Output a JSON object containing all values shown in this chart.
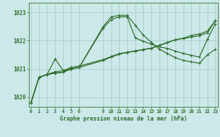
{
  "title": "Graphe pression niveau de la mer (hPa)",
  "bg_color": "#cce8e8",
  "grid_color": "#aad0d0",
  "line_color": "#2d6e2d",
  "ylim": [
    1019.65,
    1023.35
  ],
  "yticks": [
    1020,
    1021,
    1022,
    1023
  ],
  "xticks": [
    0,
    1,
    2,
    3,
    4,
    5,
    6,
    9,
    10,
    11,
    12,
    13,
    14,
    15,
    16,
    17,
    18,
    19,
    20,
    21,
    22,
    23
  ],
  "xlim": [
    -0.3,
    23.3
  ],
  "series": [
    {
      "x": [
        0,
        1,
        2,
        3,
        4,
        5,
        6,
        9,
        10,
        11,
        12,
        13,
        14,
        15,
        16,
        17,
        18,
        19,
        20,
        21,
        22,
        23
      ],
      "y": [
        1019.8,
        1020.7,
        1020.8,
        1021.35,
        1020.95,
        1021.0,
        1021.05,
        1022.5,
        1022.85,
        1022.9,
        1022.9,
        1022.55,
        1022.2,
        1021.95,
        1021.7,
        1021.55,
        1021.4,
        1021.3,
        1021.25,
        1021.2,
        1021.5,
        1021.7
      ]
    },
    {
      "x": [
        0,
        1,
        2,
        3,
        4,
        5,
        6,
        9,
        10,
        11,
        12,
        13,
        14,
        15,
        16,
        17,
        18,
        19,
        20,
        21,
        22,
        23
      ],
      "y": [
        1019.8,
        1020.7,
        1020.8,
        1020.85,
        1020.88,
        1021.0,
        1021.05,
        1021.3,
        1021.42,
        1021.52,
        1021.58,
        1021.63,
        1021.68,
        1021.73,
        1021.83,
        1021.93,
        1022.03,
        1022.08,
        1022.13,
        1022.18,
        1022.28,
        1022.72
      ]
    },
    {
      "x": [
        0,
        1,
        2,
        3,
        4,
        5,
        6,
        9,
        10,
        11,
        12,
        13,
        14,
        15,
        16,
        17,
        18,
        19,
        20,
        21,
        22,
        23
      ],
      "y": [
        1019.8,
        1020.7,
        1020.8,
        1020.85,
        1020.88,
        1021.0,
        1021.05,
        1022.45,
        1022.75,
        1022.85,
        1022.85,
        1022.1,
        1021.98,
        1021.88,
        1021.78,
        1021.73,
        1021.63,
        1021.55,
        1021.48,
        1021.42,
        1022.05,
        1022.6
      ]
    },
    {
      "x": [
        0,
        1,
        2,
        3,
        4,
        5,
        6,
        9,
        10,
        11,
        12,
        13,
        14,
        15,
        16,
        17,
        18,
        19,
        20,
        21,
        22,
        23
      ],
      "y": [
        1019.8,
        1020.7,
        1020.8,
        1020.9,
        1020.93,
        1021.05,
        1021.1,
        1021.33,
        1021.44,
        1021.54,
        1021.59,
        1021.64,
        1021.69,
        1021.74,
        1021.84,
        1021.94,
        1022.04,
        1022.09,
        1022.19,
        1022.24,
        1022.34,
        1022.72
      ]
    }
  ]
}
